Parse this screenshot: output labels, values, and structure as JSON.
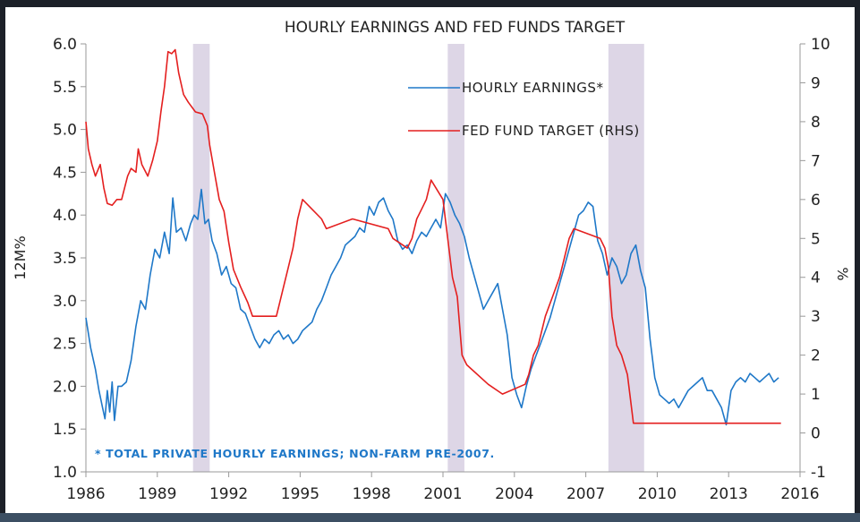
{
  "chart_data": {
    "type": "line",
    "title": "HOURLY EARNINGS AND FED FUNDS TARGET",
    "ylabel": "12M%",
    "y2label": "%",
    "note": "* TOTAL PRIVATE HOURLY EARNINGS; NON-FARM PRE-2007.",
    "xlim": [
      1986,
      2016
    ],
    "ylim": [
      1.0,
      6.0
    ],
    "y2lim": [
      -1,
      10
    ],
    "x_ticks": [
      "1986",
      "1989",
      "1992",
      "1995",
      "1998",
      "2001",
      "2004",
      "2007",
      "2010",
      "2013",
      "2016"
    ],
    "y_ticks": [
      "1.0",
      "1.5",
      "2.0",
      "2.5",
      "3.0",
      "3.5",
      "4.0",
      "4.5",
      "5.0",
      "5.5",
      "6.0"
    ],
    "y2_ticks": [
      "-1",
      "0",
      "1",
      "2",
      "3",
      "4",
      "5",
      "6",
      "7",
      "8",
      "9",
      "10"
    ],
    "legend_position": "top-right",
    "recessions": [
      [
        1990.5,
        1991.2
      ],
      [
        2001.2,
        2001.9
      ],
      [
        2007.95,
        2009.45
      ]
    ],
    "series": [
      {
        "name": "HOURLY EARNINGS*",
        "axis": "left",
        "color": "#1f78c8",
        "points": [
          [
            1986.0,
            2.8
          ],
          [
            1986.2,
            2.45
          ],
          [
            1986.4,
            2.2
          ],
          [
            1986.55,
            1.95
          ],
          [
            1986.7,
            1.75
          ],
          [
            1986.8,
            1.62
          ],
          [
            1986.9,
            1.95
          ],
          [
            1987.0,
            1.7
          ],
          [
            1987.1,
            2.05
          ],
          [
            1987.2,
            1.6
          ],
          [
            1987.35,
            2.0
          ],
          [
            1987.5,
            2.0
          ],
          [
            1987.7,
            2.05
          ],
          [
            1987.9,
            2.3
          ],
          [
            1988.1,
            2.7
          ],
          [
            1988.3,
            3.0
          ],
          [
            1988.5,
            2.9
          ],
          [
            1988.7,
            3.3
          ],
          [
            1988.9,
            3.6
          ],
          [
            1989.1,
            3.5
          ],
          [
            1989.3,
            3.8
          ],
          [
            1989.5,
            3.55
          ],
          [
            1989.65,
            4.2
          ],
          [
            1989.8,
            3.8
          ],
          [
            1990.0,
            3.85
          ],
          [
            1990.2,
            3.7
          ],
          [
            1990.4,
            3.9
          ],
          [
            1990.55,
            4.0
          ],
          [
            1990.7,
            3.95
          ],
          [
            1990.85,
            4.3
          ],
          [
            1991.0,
            3.9
          ],
          [
            1991.15,
            3.95
          ],
          [
            1991.3,
            3.7
          ],
          [
            1991.5,
            3.55
          ],
          [
            1991.7,
            3.3
          ],
          [
            1991.9,
            3.4
          ],
          [
            1992.1,
            3.2
          ],
          [
            1992.3,
            3.15
          ],
          [
            1992.5,
            2.9
          ],
          [
            1992.7,
            2.85
          ],
          [
            1992.9,
            2.7
          ],
          [
            1993.1,
            2.55
          ],
          [
            1993.3,
            2.45
          ],
          [
            1993.5,
            2.55
          ],
          [
            1993.7,
            2.5
          ],
          [
            1993.9,
            2.6
          ],
          [
            1994.1,
            2.65
          ],
          [
            1994.3,
            2.55
          ],
          [
            1994.5,
            2.6
          ],
          [
            1994.7,
            2.5
          ],
          [
            1994.9,
            2.55
          ],
          [
            1995.1,
            2.65
          ],
          [
            1995.3,
            2.7
          ],
          [
            1995.5,
            2.75
          ],
          [
            1995.7,
            2.9
          ],
          [
            1995.9,
            3.0
          ],
          [
            1996.1,
            3.15
          ],
          [
            1996.3,
            3.3
          ],
          [
            1996.5,
            3.4
          ],
          [
            1996.7,
            3.5
          ],
          [
            1996.9,
            3.65
          ],
          [
            1997.1,
            3.7
          ],
          [
            1997.3,
            3.75
          ],
          [
            1997.5,
            3.85
          ],
          [
            1997.7,
            3.8
          ],
          [
            1997.9,
            4.1
          ],
          [
            1998.1,
            4.0
          ],
          [
            1998.3,
            4.15
          ],
          [
            1998.5,
            4.2
          ],
          [
            1998.7,
            4.05
          ],
          [
            1998.9,
            3.95
          ],
          [
            1999.1,
            3.7
          ],
          [
            1999.3,
            3.6
          ],
          [
            1999.5,
            3.65
          ],
          [
            1999.7,
            3.55
          ],
          [
            1999.9,
            3.7
          ],
          [
            2000.1,
            3.8
          ],
          [
            2000.3,
            3.75
          ],
          [
            2000.5,
            3.85
          ],
          [
            2000.7,
            3.95
          ],
          [
            2000.9,
            3.85
          ],
          [
            2001.1,
            4.25
          ],
          [
            2001.3,
            4.15
          ],
          [
            2001.5,
            4.0
          ],
          [
            2001.7,
            3.9
          ],
          [
            2001.9,
            3.75
          ],
          [
            2002.1,
            3.5
          ],
          [
            2002.3,
            3.3
          ],
          [
            2002.5,
            3.1
          ],
          [
            2002.7,
            2.9
          ],
          [
            2002.9,
            3.0
          ],
          [
            2003.1,
            3.1
          ],
          [
            2003.3,
            3.2
          ],
          [
            2003.5,
            2.9
          ],
          [
            2003.7,
            2.6
          ],
          [
            2003.9,
            2.1
          ],
          [
            2004.1,
            1.9
          ],
          [
            2004.3,
            1.75
          ],
          [
            2004.5,
            2.0
          ],
          [
            2004.7,
            2.2
          ],
          [
            2004.9,
            2.35
          ],
          [
            2005.1,
            2.5
          ],
          [
            2005.3,
            2.65
          ],
          [
            2005.5,
            2.8
          ],
          [
            2005.7,
            3.0
          ],
          [
            2005.9,
            3.2
          ],
          [
            2006.1,
            3.4
          ],
          [
            2006.3,
            3.6
          ],
          [
            2006.5,
            3.8
          ],
          [
            2006.7,
            4.0
          ],
          [
            2006.9,
            4.05
          ],
          [
            2007.1,
            4.15
          ],
          [
            2007.3,
            4.1
          ],
          [
            2007.5,
            3.7
          ],
          [
            2007.7,
            3.55
          ],
          [
            2007.9,
            3.3
          ],
          [
            2008.1,
            3.5
          ],
          [
            2008.3,
            3.4
          ],
          [
            2008.5,
            3.2
          ],
          [
            2008.7,
            3.3
          ],
          [
            2008.9,
            3.55
          ],
          [
            2009.1,
            3.65
          ],
          [
            2009.3,
            3.35
          ],
          [
            2009.5,
            3.15
          ],
          [
            2009.7,
            2.55
          ],
          [
            2009.9,
            2.1
          ],
          [
            2010.1,
            1.9
          ],
          [
            2010.3,
            1.85
          ],
          [
            2010.5,
            1.8
          ],
          [
            2010.7,
            1.85
          ],
          [
            2010.9,
            1.75
          ],
          [
            2011.1,
            1.85
          ],
          [
            2011.3,
            1.95
          ],
          [
            2011.5,
            2.0
          ],
          [
            2011.7,
            2.05
          ],
          [
            2011.9,
            2.1
          ],
          [
            2012.1,
            1.95
          ],
          [
            2012.3,
            1.95
          ],
          [
            2012.5,
            1.85
          ],
          [
            2012.7,
            1.75
          ],
          [
            2012.9,
            1.55
          ],
          [
            2013.1,
            1.95
          ],
          [
            2013.3,
            2.05
          ],
          [
            2013.5,
            2.1
          ],
          [
            2013.7,
            2.05
          ],
          [
            2013.9,
            2.15
          ],
          [
            2014.1,
            2.1
          ],
          [
            2014.3,
            2.05
          ],
          [
            2014.5,
            2.1
          ],
          [
            2014.7,
            2.15
          ],
          [
            2014.9,
            2.05
          ],
          [
            2015.1,
            2.1
          ]
        ]
      },
      {
        "name": "FED FUND TARGET (RHS)",
        "axis": "right",
        "color": "#e41f1f",
        "points": [
          [
            1986.0,
            8.0
          ],
          [
            1986.1,
            7.3
          ],
          [
            1986.25,
            6.9
          ],
          [
            1986.4,
            6.6
          ],
          [
            1986.6,
            6.9
          ],
          [
            1986.75,
            6.3
          ],
          [
            1986.9,
            5.9
          ],
          [
            1987.1,
            5.85
          ],
          [
            1987.3,
            6.0
          ],
          [
            1987.5,
            6.0
          ],
          [
            1987.75,
            6.6
          ],
          [
            1987.9,
            6.8
          ],
          [
            1988.1,
            6.7
          ],
          [
            1988.2,
            7.3
          ],
          [
            1988.35,
            6.9
          ],
          [
            1988.6,
            6.6
          ],
          [
            1988.8,
            7.0
          ],
          [
            1989.0,
            7.5
          ],
          [
            1989.15,
            8.25
          ],
          [
            1989.3,
            8.9
          ],
          [
            1989.45,
            9.8
          ],
          [
            1989.6,
            9.75
          ],
          [
            1989.75,
            9.85
          ],
          [
            1989.9,
            9.25
          ],
          [
            1990.1,
            8.7
          ],
          [
            1990.3,
            8.5
          ],
          [
            1990.6,
            8.25
          ],
          [
            1990.9,
            8.2
          ],
          [
            1991.1,
            7.9
          ],
          [
            1991.2,
            7.4
          ],
          [
            1991.4,
            6.7
          ],
          [
            1991.6,
            6.0
          ],
          [
            1991.8,
            5.7
          ],
          [
            1992.0,
            4.9
          ],
          [
            1992.2,
            4.2
          ],
          [
            1992.5,
            3.75
          ],
          [
            1992.8,
            3.35
          ],
          [
            1993.0,
            3.0
          ],
          [
            1994.0,
            3.0
          ],
          [
            1994.1,
            3.25
          ],
          [
            1994.3,
            3.75
          ],
          [
            1994.5,
            4.25
          ],
          [
            1994.7,
            4.75
          ],
          [
            1994.9,
            5.5
          ],
          [
            1995.1,
            6.0
          ],
          [
            1995.5,
            5.75
          ],
          [
            1995.9,
            5.5
          ],
          [
            1996.1,
            5.25
          ],
          [
            1997.2,
            5.5
          ],
          [
            1998.7,
            5.25
          ],
          [
            1998.9,
            5.0
          ],
          [
            1999.5,
            4.75
          ],
          [
            1999.7,
            5.0
          ],
          [
            1999.9,
            5.5
          ],
          [
            2000.1,
            5.75
          ],
          [
            2000.3,
            6.0
          ],
          [
            2000.5,
            6.5
          ],
          [
            2001.0,
            6.0
          ],
          [
            2001.2,
            5.0
          ],
          [
            2001.4,
            4.0
          ],
          [
            2001.6,
            3.5
          ],
          [
            2001.8,
            2.0
          ],
          [
            2002.0,
            1.75
          ],
          [
            2002.9,
            1.25
          ],
          [
            2003.5,
            1.0
          ],
          [
            2004.45,
            1.25
          ],
          [
            2004.6,
            1.5
          ],
          [
            2004.8,
            2.0
          ],
          [
            2005.0,
            2.25
          ],
          [
            2005.3,
            3.0
          ],
          [
            2005.6,
            3.5
          ],
          [
            2005.9,
            4.0
          ],
          [
            2006.1,
            4.5
          ],
          [
            2006.3,
            5.0
          ],
          [
            2006.5,
            5.25
          ],
          [
            2007.6,
            5.0
          ],
          [
            2007.8,
            4.75
          ],
          [
            2007.95,
            4.25
          ],
          [
            2008.1,
            3.0
          ],
          [
            2008.3,
            2.25
          ],
          [
            2008.5,
            2.0
          ],
          [
            2008.75,
            1.5
          ],
          [
            2008.85,
            1.0
          ],
          [
            2009.0,
            0.25
          ],
          [
            2015.2,
            0.25
          ]
        ]
      }
    ]
  }
}
